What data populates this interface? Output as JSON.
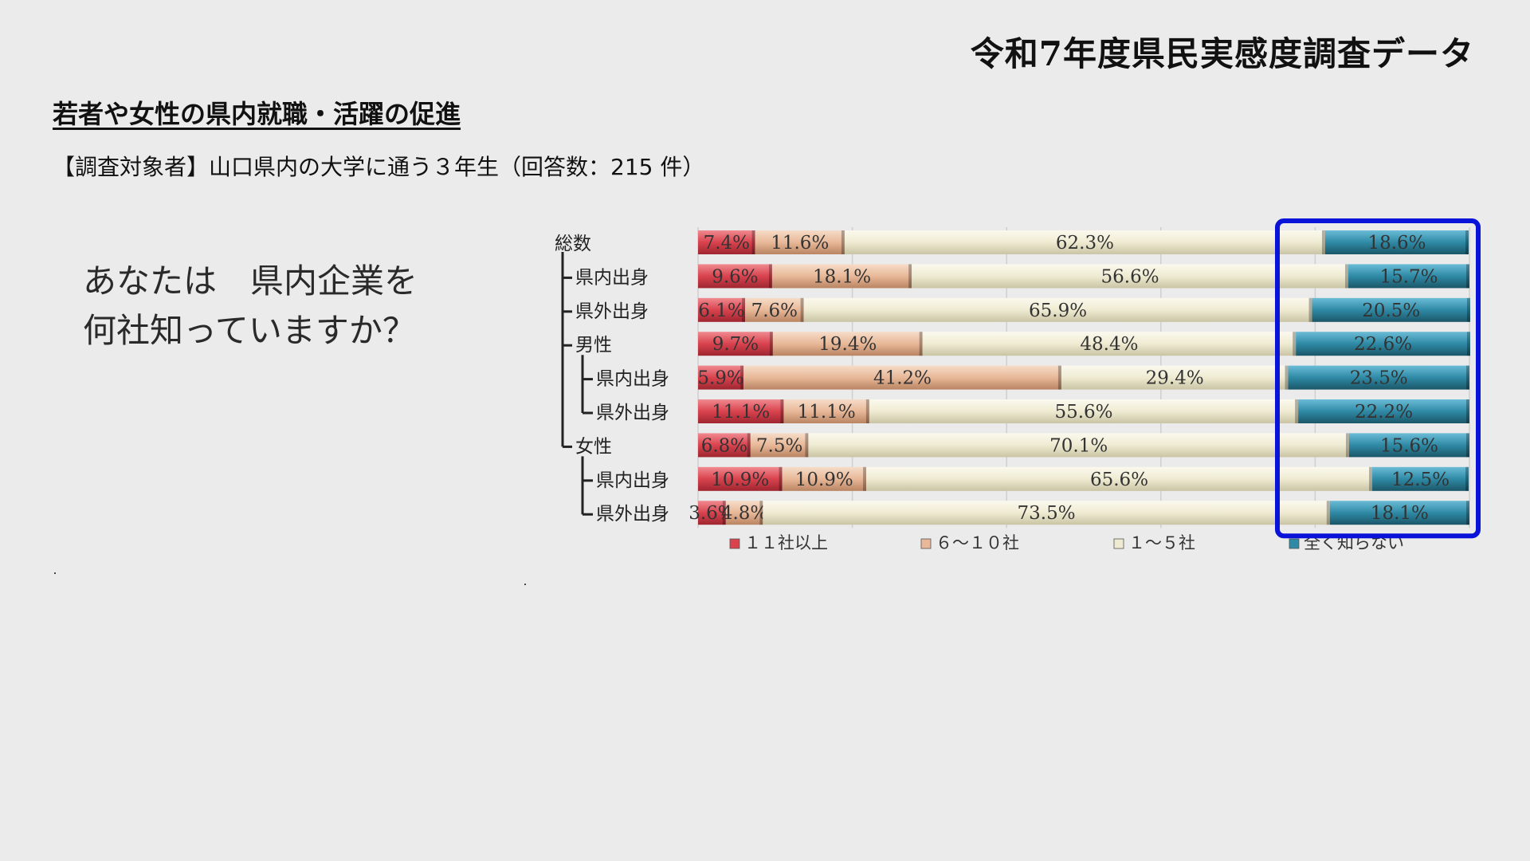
{
  "title": "令和7年度県民実感度調査データ",
  "subtitle": "若者や女性の県内就職・活躍の促進",
  "respondents": "【調査対象者】山口県内の大学に通う３年生（回答数：215 件）",
  "question": {
    "line1": "あなたは　県内企業を",
    "line2": "何社知っていますか？"
  },
  "colors": {
    "series": [
      "#d9434e",
      "#e8b898",
      "#efebd2",
      "#2f8aa6"
    ],
    "highlight": "#0a14d8"
  },
  "chart_data": {
    "type": "bar",
    "stacked": true,
    "orientation": "horizontal",
    "percent_stacked": true,
    "categories": [
      "総数",
      "県内出身",
      "県外出身",
      "男性",
      "県内出身",
      "県外出身",
      "女性",
      "県内出身",
      "県外出身"
    ],
    "category_levels": [
      0,
      1,
      1,
      1,
      2,
      2,
      1,
      2,
      2
    ],
    "series": [
      {
        "name": "１１社以上",
        "values": [
          7.4,
          9.6,
          6.1,
          9.7,
          5.9,
          11.1,
          6.8,
          10.9,
          3.6
        ]
      },
      {
        "name": "６～１０社",
        "values": [
          11.6,
          18.1,
          7.6,
          19.4,
          41.2,
          11.1,
          7.5,
          10.9,
          4.8
        ]
      },
      {
        "name": "１～５社",
        "values": [
          62.3,
          56.6,
          65.9,
          48.4,
          29.4,
          55.6,
          70.1,
          65.6,
          73.5
        ]
      },
      {
        "name": "全く知らない",
        "values": [
          18.6,
          15.7,
          20.5,
          22.6,
          23.5,
          22.2,
          15.6,
          12.5,
          18.1
        ]
      }
    ],
    "value_suffix": "%",
    "xlim": [
      0,
      100
    ],
    "grid": true,
    "legend_position": "bottom",
    "highlight_series": "全く知らない"
  }
}
